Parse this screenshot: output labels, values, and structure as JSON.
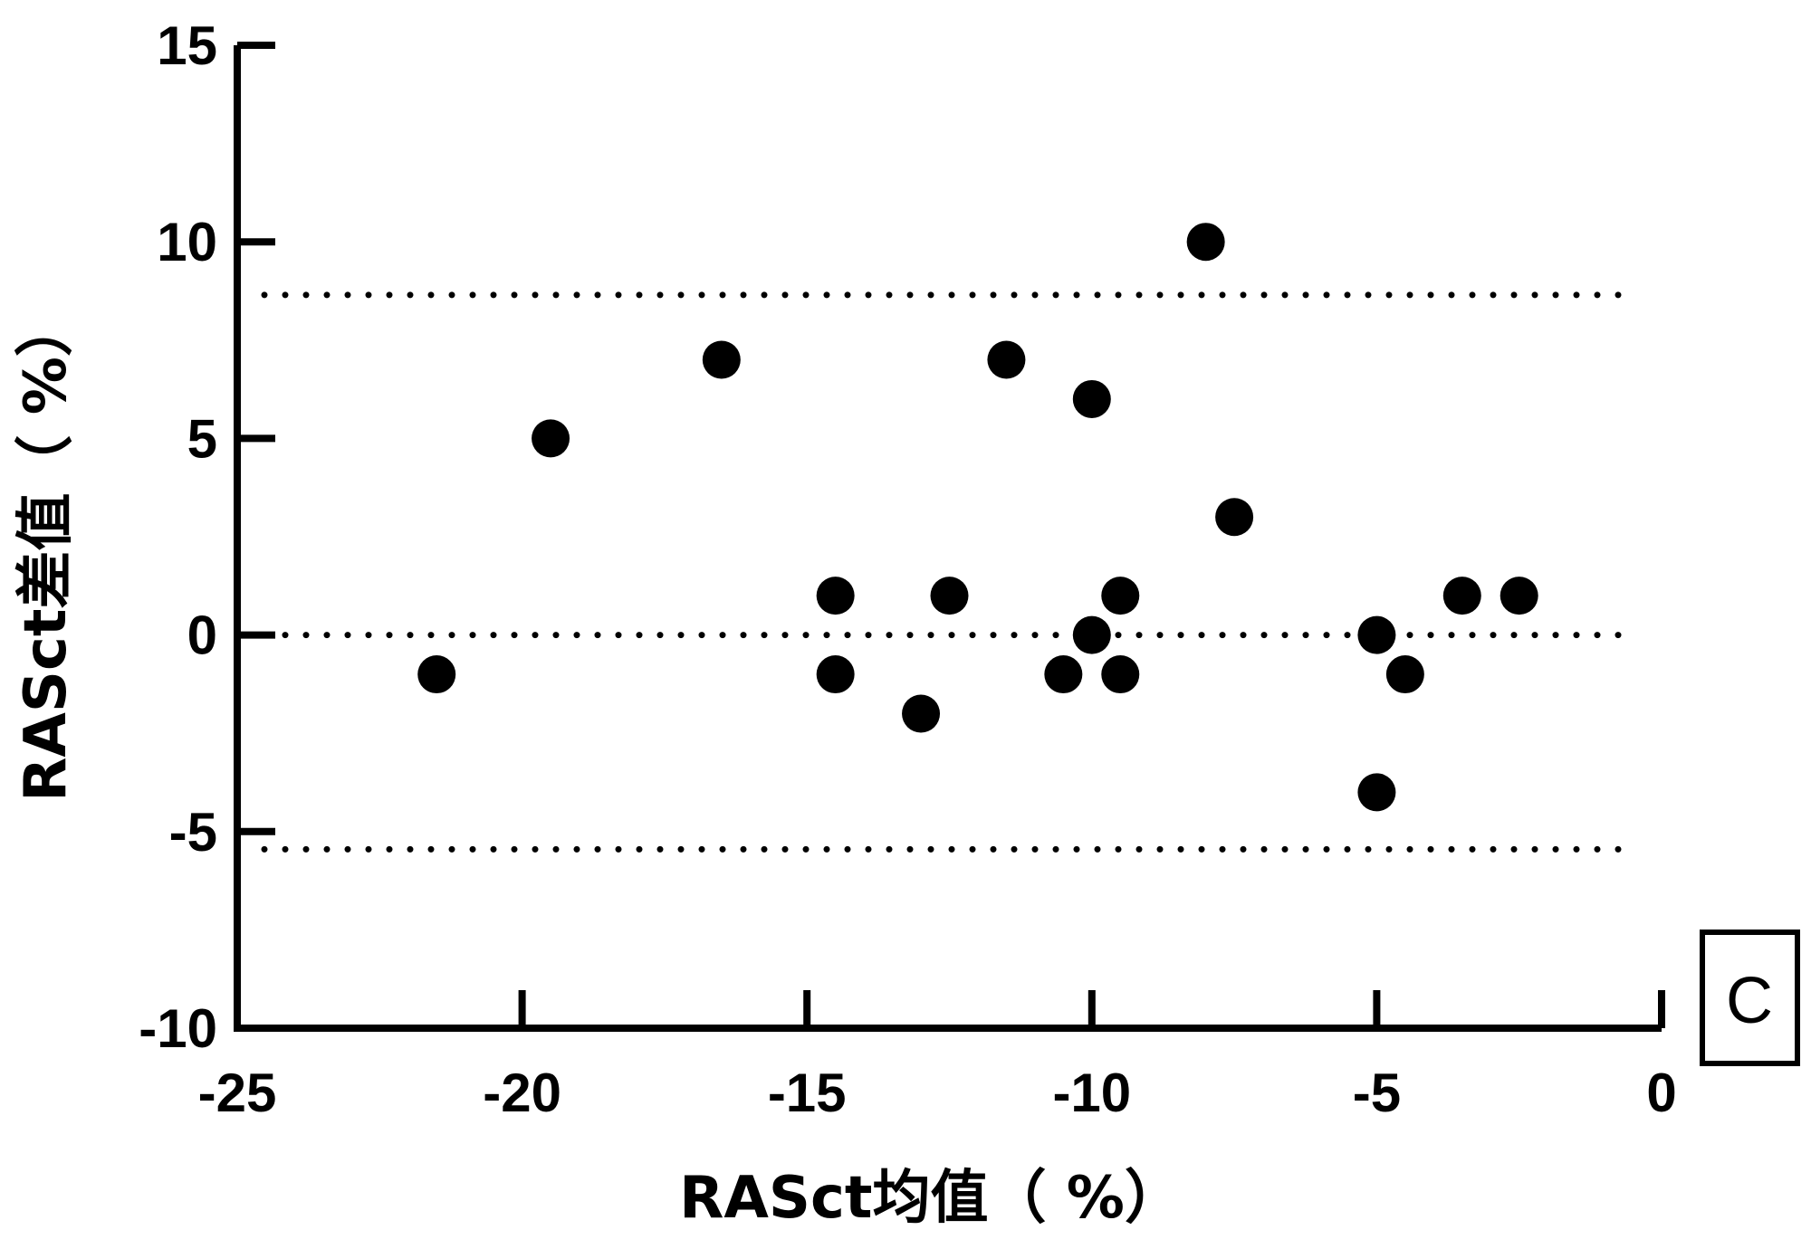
{
  "chart_data": {
    "type": "scatter",
    "xlabel": "RASct均值（ %）",
    "ylabel": "RASct差值（ %）",
    "xlim": [
      -25,
      0
    ],
    "ylim": [
      -10,
      15
    ],
    "x_ticks": [
      -25,
      -20,
      -15,
      -10,
      -5,
      0
    ],
    "y_ticks": [
      -10,
      -5,
      0,
      5,
      10,
      15
    ],
    "grid": false,
    "panel_label": "C",
    "points": [
      {
        "x": -21.5,
        "y": -1
      },
      {
        "x": -19.5,
        "y": 5
      },
      {
        "x": -16.5,
        "y": 7
      },
      {
        "x": -14.5,
        "y": 1
      },
      {
        "x": -14.5,
        "y": -1
      },
      {
        "x": -13.0,
        "y": -2
      },
      {
        "x": -12.5,
        "y": 1
      },
      {
        "x": -11.5,
        "y": 7
      },
      {
        "x": -10.5,
        "y": -1
      },
      {
        "x": -10.0,
        "y": 6
      },
      {
        "x": -10.0,
        "y": 0
      },
      {
        "x": -9.5,
        "y": 1
      },
      {
        "x": -9.5,
        "y": -1
      },
      {
        "x": -8.0,
        "y": 10
      },
      {
        "x": -7.5,
        "y": 3
      },
      {
        "x": -5.0,
        "y": 0
      },
      {
        "x": -5.0,
        "y": -4
      },
      {
        "x": -4.5,
        "y": -1
      },
      {
        "x": -3.5,
        "y": 1
      },
      {
        "x": -2.5,
        "y": 1
      }
    ],
    "reference_lines": [
      {
        "y": 8.65,
        "style": "dotted"
      },
      {
        "y": 0,
        "style": "dotted"
      },
      {
        "y": -5.45,
        "style": "dotted"
      }
    ],
    "colors": {
      "points": "#000000",
      "axes": "#000000",
      "lines": "#000000"
    }
  }
}
